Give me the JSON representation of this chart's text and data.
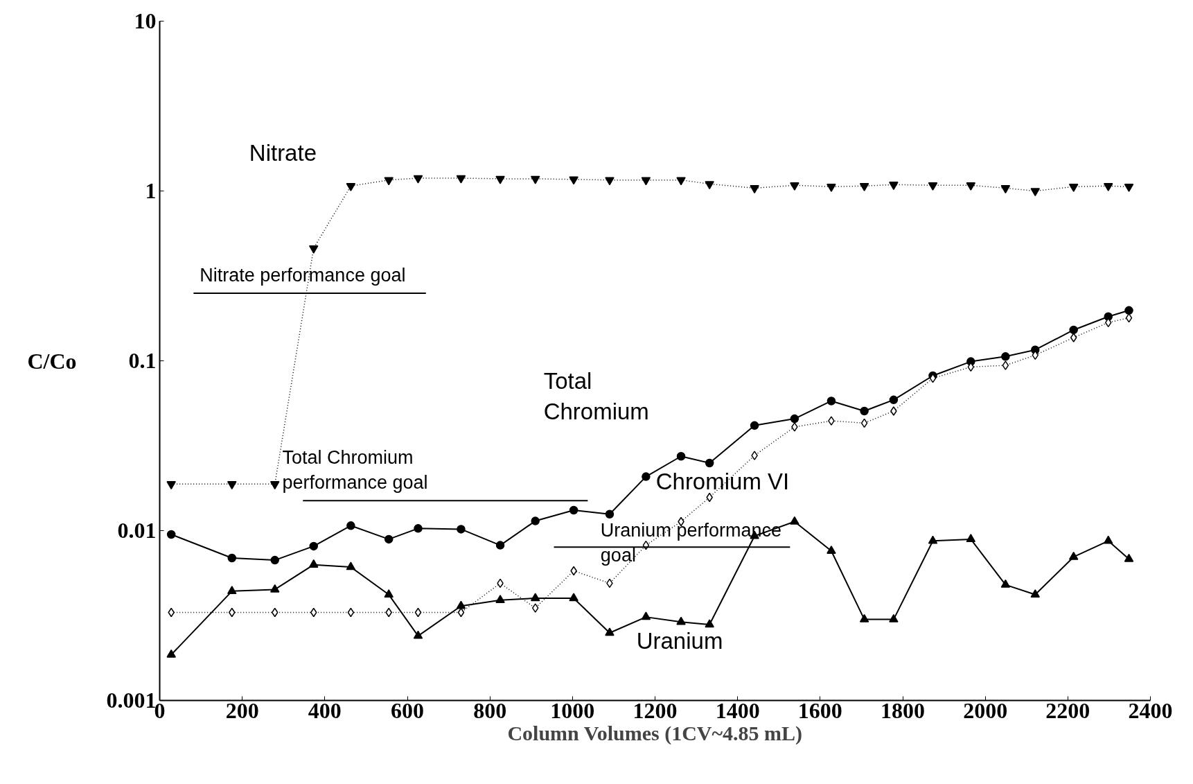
{
  "chart_data": {
    "type": "line",
    "xlabel": "Column Volumes (1CV~4.85 mL)",
    "ylabel": "C/Co",
    "xlim": [
      0,
      2400
    ],
    "xticks": [
      0,
      200,
      400,
      600,
      800,
      1000,
      1200,
      1400,
      1600,
      1800,
      2000,
      2200,
      2400
    ],
    "ylim": [
      0.001,
      10
    ],
    "yticks": [
      0.001,
      0.01,
      0.1,
      1,
      10
    ],
    "log": true,
    "grid": false,
    "x": [
      28,
      175,
      279,
      373,
      463,
      555,
      626,
      730,
      825,
      910,
      1003,
      1090,
      1178,
      1263,
      1332,
      1441,
      1538,
      1627,
      1707,
      1778,
      1873,
      1965,
      2049,
      2121,
      2214,
      2298,
      2348
    ],
    "series": [
      {
        "name": "Nitrate",
        "color": "#000000",
        "marker": "triangle",
        "line_style": "dotted",
        "values": [
          0.0188,
          0.0188,
          0.0188,
          0.46,
          1.07,
          1.16,
          1.19,
          1.19,
          1.18,
          1.18,
          1.17,
          1.16,
          1.16,
          1.16,
          1.1,
          1.04,
          1.08,
          1.06,
          1.07,
          1.09,
          1.08,
          1.08,
          1.04,
          1.0,
          1.06,
          1.07,
          1.06
        ]
      },
      {
        "name": "Total Chromium",
        "color": "#000000",
        "marker": "circle",
        "line_style": "solid",
        "values": [
          0.0095,
          0.0069,
          0.0067,
          0.0081,
          0.0107,
          0.0089,
          0.0103,
          0.0102,
          0.0082,
          0.0114,
          0.0132,
          0.0125,
          0.0208,
          0.0274,
          0.025,
          0.0416,
          0.0456,
          0.058,
          0.0506,
          0.0589,
          0.0817,
          0.099,
          0.106,
          0.116,
          0.152,
          0.182,
          0.198
        ]
      },
      {
        "name": "Chromium VI",
        "color": "#000000",
        "marker": "diamond",
        "line_style": "dotted",
        "values": [
          0.0033,
          0.0033,
          0.0033,
          0.0033,
          0.0033,
          0.0033,
          0.0033,
          0.0033,
          0.0049,
          0.0035,
          0.0058,
          0.0049,
          0.0082,
          0.0113,
          0.0157,
          0.0277,
          0.0408,
          0.0443,
          0.043,
          0.0506,
          0.079,
          0.092,
          0.094,
          0.108,
          0.137,
          0.168,
          0.179
        ]
      },
      {
        "name": "Uranium",
        "color": "#000000",
        "marker": "triangle",
        "line_style": "solid",
        "values": [
          0.00186,
          0.0044,
          0.0045,
          0.0063,
          0.0061,
          0.0042,
          0.0024,
          0.0036,
          0.0039,
          0.004,
          0.004,
          0.0025,
          0.0031,
          0.0029,
          0.0028,
          0.0093,
          0.0113,
          0.0076,
          0.003,
          0.003,
          0.0087,
          0.0089,
          0.0048,
          0.0042,
          0.007,
          0.0087,
          0.0068
        ]
      },
      {
        "name": "Nitrate performance goal",
        "color": "#000000",
        "marker": "none",
        "line_style": "solid",
        "x": [
          82,
          645
        ],
        "values": [
          0.25,
          0.25
        ]
      },
      {
        "name": "Total Chromium performance goal",
        "color": "#000000",
        "marker": "none",
        "line_style": "solid",
        "x": [
          347,
          1037
        ],
        "values": [
          0.015,
          0.015
        ]
      },
      {
        "name": "Uranium performance goal",
        "color": "#000000",
        "marker": "none",
        "line_style": "solid",
        "x": [
          955,
          1527
        ],
        "values": [
          0.008,
          0.008
        ]
      }
    ]
  }
}
